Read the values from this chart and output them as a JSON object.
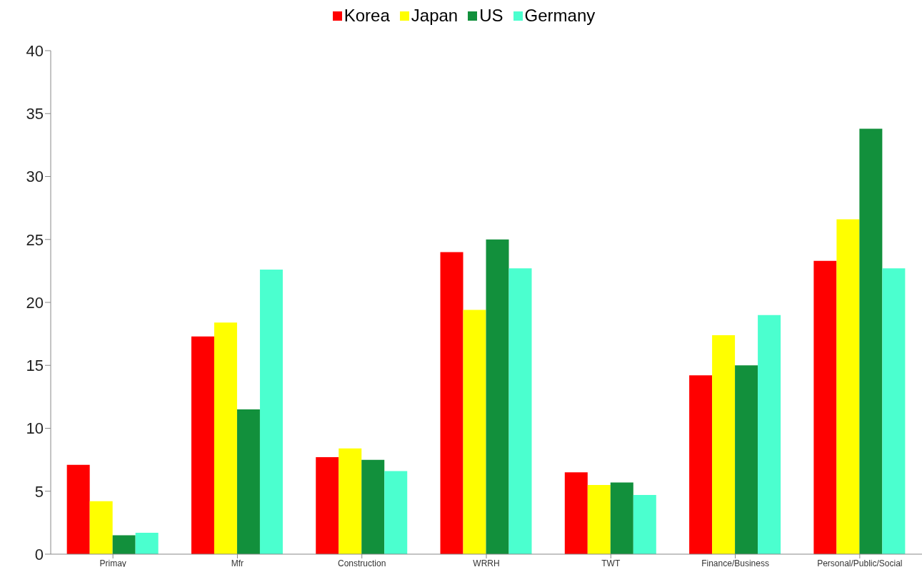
{
  "chart_data": {
    "type": "bar",
    "categories": [
      "Primay",
      "Mfr",
      "Construction",
      "WRRH",
      "TWT",
      "Finance/Business",
      "Personal/Public/Social"
    ],
    "series": [
      {
        "name": "Korea",
        "color": "#ff0000",
        "values": [
          7.1,
          17.3,
          7.7,
          24.0,
          6.5,
          14.2,
          23.3
        ]
      },
      {
        "name": "Japan",
        "color": "#ffff00",
        "values": [
          4.2,
          18.4,
          8.4,
          19.4,
          5.5,
          17.4,
          26.6
        ]
      },
      {
        "name": "US",
        "color": "#12903c",
        "values": [
          1.5,
          11.5,
          7.5,
          25.0,
          5.7,
          15.0,
          33.8
        ]
      },
      {
        "name": "Germany",
        "color": "#4bffcf",
        "values": [
          1.7,
          22.6,
          6.6,
          22.7,
          4.7,
          19.0,
          22.7
        ]
      }
    ],
    "ylim": [
      0,
      40
    ],
    "yticks": [
      0,
      5,
      10,
      15,
      20,
      25,
      30,
      35,
      40
    ],
    "grid": false,
    "legend": "top"
  }
}
